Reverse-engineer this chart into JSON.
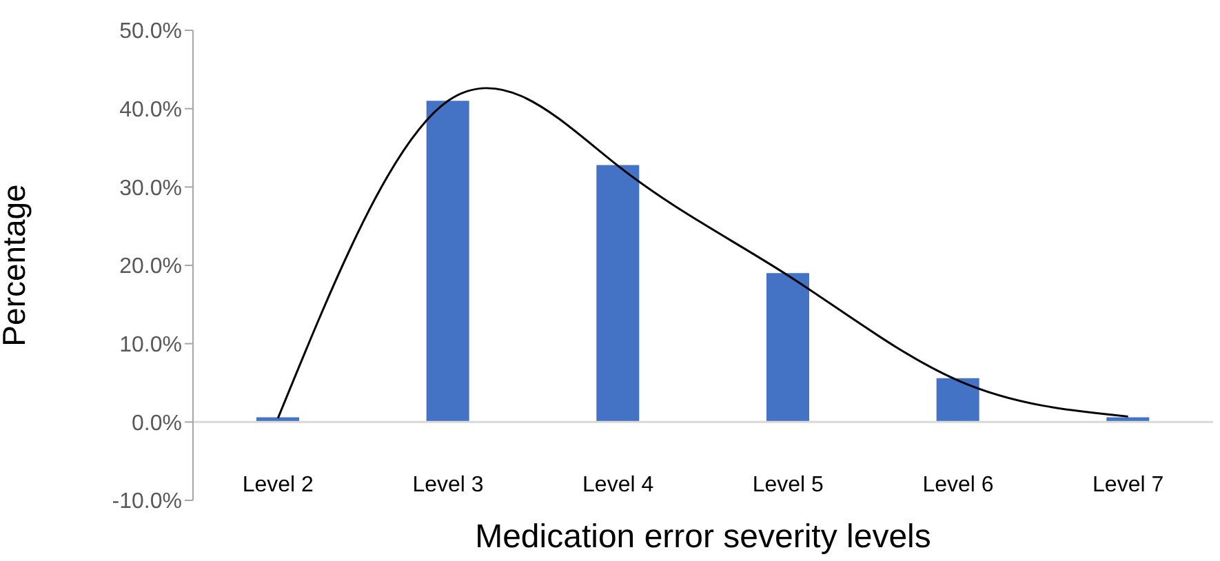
{
  "chart_data": {
    "type": "bar",
    "xlabel": "Medication error severity levels",
    "ylabel": "Percentage",
    "categories": [
      "Level 2",
      "Level 3",
      "Level 4",
      "Level 5",
      "Level 6",
      "Level 7"
    ],
    "series": [
      {
        "color": "#4472c4",
        "values": [
          0.6,
          41.0,
          32.8,
          19.0,
          5.6,
          0.6
        ]
      },
      {
        "type": "line",
        "color": "#000000",
        "values": [
          0.5,
          41.0,
          32.7,
          18.7,
          5.3,
          0.7
        ]
      }
    ],
    "ylim": [
      -10,
      50
    ],
    "yticks": [
      {
        "value": -10,
        "label": "-10.0%"
      },
      {
        "value": 0,
        "label": "0.0%"
      },
      {
        "value": 10,
        "label": "10.0%"
      },
      {
        "value": 20,
        "label": "20.0%"
      },
      {
        "value": 30,
        "label": "30.0%"
      },
      {
        "value": 40,
        "label": "40.0%"
      },
      {
        "value": 50,
        "label": "50.0%"
      }
    ],
    "marker": "none",
    "line_style": "solid"
  }
}
